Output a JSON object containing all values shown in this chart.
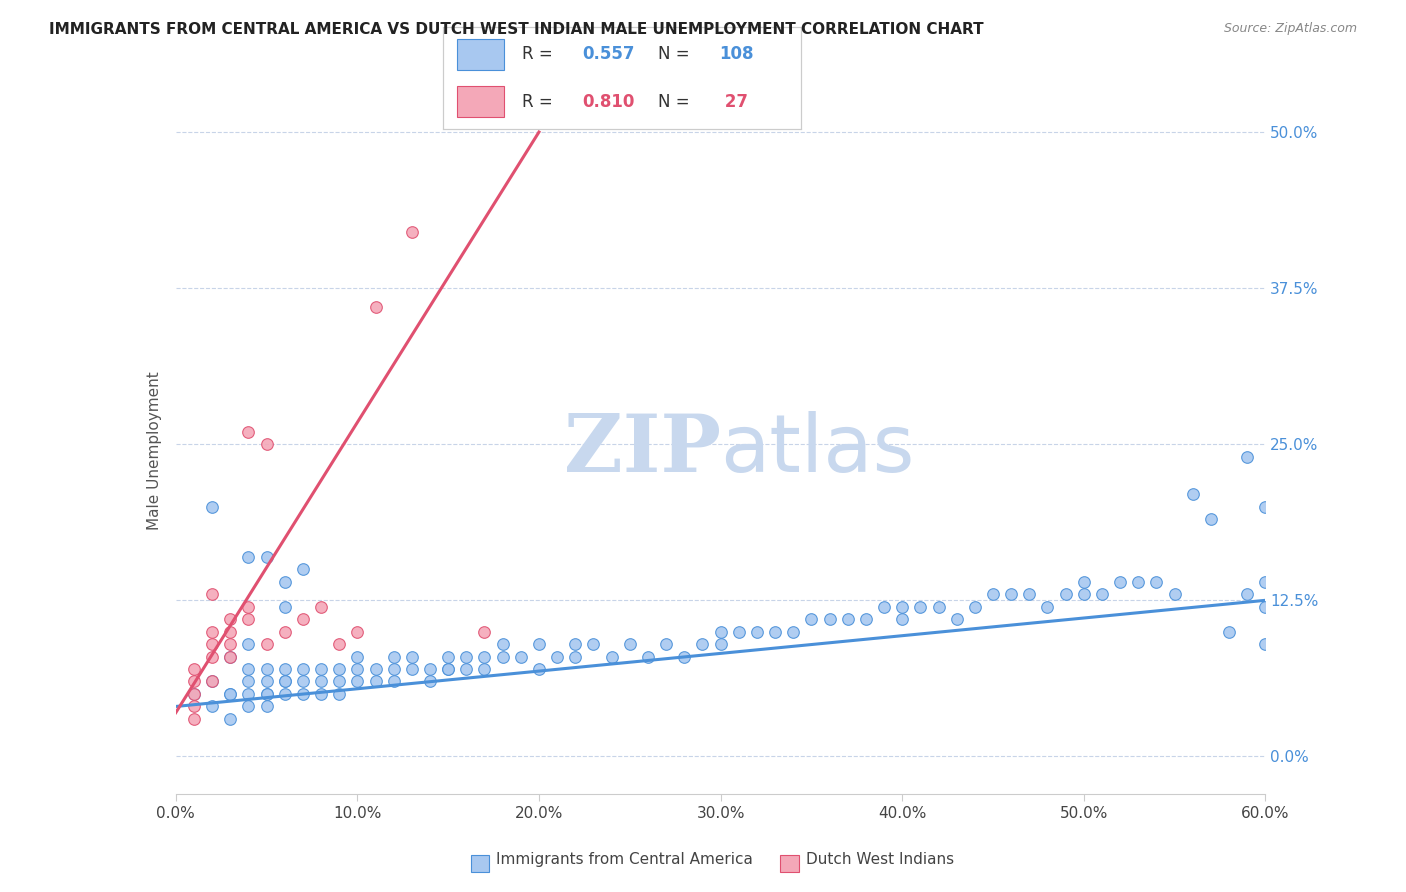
{
  "title": "IMMIGRANTS FROM CENTRAL AMERICA VS DUTCH WEST INDIAN MALE UNEMPLOYMENT CORRELATION CHART",
  "source": "Source: ZipAtlas.com",
  "xlabel_ticks": [
    "0.0%",
    "10.0%",
    "20.0%",
    "30.0%",
    "40.0%",
    "50.0%",
    "60.0%"
  ],
  "xlabel_vals": [
    0.0,
    0.1,
    0.2,
    0.3,
    0.4,
    0.5,
    0.6
  ],
  "ylabel_ticks": [
    "0.0%",
    "12.5%",
    "25.0%",
    "37.5%",
    "50.0%"
  ],
  "ylabel_vals": [
    0.0,
    0.125,
    0.25,
    0.375,
    0.5
  ],
  "ylabel_label": "Male Unemployment",
  "xmin": 0.0,
  "xmax": 0.6,
  "ymin": -0.03,
  "ymax": 0.52,
  "blue_color": "#a8c8f0",
  "pink_color": "#f4a8b8",
  "blue_line_color": "#4a90d9",
  "pink_line_color": "#e05070",
  "blue_R": "0.557",
  "blue_N": "108",
  "pink_R": "0.810",
  "pink_N": "27",
  "legend_labels": [
    "Immigrants from Central America",
    "Dutch West Indians"
  ],
  "watermark_zip": "ZIP",
  "watermark_atlas": "atlas",
  "watermark_color_zip": "#c8d8ee",
  "watermark_color_atlas": "#c8d8ee",
  "blue_scatter_x": [
    0.01,
    0.02,
    0.02,
    0.03,
    0.03,
    0.03,
    0.04,
    0.04,
    0.04,
    0.04,
    0.05,
    0.05,
    0.05,
    0.05,
    0.05,
    0.06,
    0.06,
    0.06,
    0.06,
    0.07,
    0.07,
    0.07,
    0.08,
    0.08,
    0.08,
    0.09,
    0.09,
    0.09,
    0.1,
    0.1,
    0.1,
    0.11,
    0.11,
    0.12,
    0.12,
    0.12,
    0.13,
    0.13,
    0.14,
    0.14,
    0.15,
    0.15,
    0.15,
    0.16,
    0.16,
    0.17,
    0.17,
    0.18,
    0.18,
    0.19,
    0.2,
    0.2,
    0.21,
    0.22,
    0.22,
    0.23,
    0.24,
    0.25,
    0.26,
    0.27,
    0.28,
    0.29,
    0.3,
    0.3,
    0.31,
    0.32,
    0.33,
    0.34,
    0.35,
    0.36,
    0.37,
    0.38,
    0.39,
    0.4,
    0.4,
    0.41,
    0.42,
    0.43,
    0.44,
    0.45,
    0.46,
    0.47,
    0.48,
    0.49,
    0.5,
    0.5,
    0.51,
    0.52,
    0.53,
    0.54,
    0.55,
    0.56,
    0.57,
    0.58,
    0.59,
    0.59,
    0.6,
    0.6,
    0.6,
    0.6,
    0.02,
    0.03,
    0.04,
    0.04,
    0.05,
    0.06,
    0.06,
    0.07
  ],
  "blue_scatter_y": [
    0.05,
    0.04,
    0.06,
    0.05,
    0.05,
    0.08,
    0.04,
    0.06,
    0.07,
    0.05,
    0.05,
    0.06,
    0.07,
    0.05,
    0.04,
    0.06,
    0.07,
    0.05,
    0.06,
    0.05,
    0.06,
    0.07,
    0.05,
    0.07,
    0.06,
    0.06,
    0.07,
    0.05,
    0.06,
    0.07,
    0.08,
    0.06,
    0.07,
    0.07,
    0.06,
    0.08,
    0.07,
    0.08,
    0.06,
    0.07,
    0.07,
    0.08,
    0.07,
    0.08,
    0.07,
    0.08,
    0.07,
    0.08,
    0.09,
    0.08,
    0.07,
    0.09,
    0.08,
    0.09,
    0.08,
    0.09,
    0.08,
    0.09,
    0.08,
    0.09,
    0.08,
    0.09,
    0.09,
    0.1,
    0.1,
    0.1,
    0.1,
    0.1,
    0.11,
    0.11,
    0.11,
    0.11,
    0.12,
    0.12,
    0.11,
    0.12,
    0.12,
    0.11,
    0.12,
    0.13,
    0.13,
    0.13,
    0.12,
    0.13,
    0.13,
    0.14,
    0.13,
    0.14,
    0.14,
    0.14,
    0.13,
    0.21,
    0.19,
    0.1,
    0.13,
    0.24,
    0.2,
    0.09,
    0.12,
    0.14,
    0.2,
    0.03,
    0.09,
    0.16,
    0.16,
    0.12,
    0.14,
    0.15
  ],
  "pink_scatter_x": [
    0.01,
    0.01,
    0.01,
    0.01,
    0.01,
    0.02,
    0.02,
    0.02,
    0.02,
    0.02,
    0.03,
    0.03,
    0.03,
    0.03,
    0.04,
    0.04,
    0.04,
    0.05,
    0.05,
    0.06,
    0.07,
    0.08,
    0.09,
    0.1,
    0.11,
    0.13,
    0.17
  ],
  "pink_scatter_y": [
    0.05,
    0.06,
    0.07,
    0.04,
    0.03,
    0.13,
    0.08,
    0.09,
    0.1,
    0.06,
    0.11,
    0.1,
    0.09,
    0.08,
    0.12,
    0.11,
    0.26,
    0.25,
    0.09,
    0.1,
    0.11,
    0.12,
    0.09,
    0.1,
    0.36,
    0.42,
    0.1
  ],
  "blue_trend_x": [
    0.0,
    0.6
  ],
  "blue_trend_y": [
    0.04,
    0.125
  ],
  "pink_trend_x": [
    0.0,
    0.2
  ],
  "pink_trend_y": [
    0.035,
    0.5
  ]
}
